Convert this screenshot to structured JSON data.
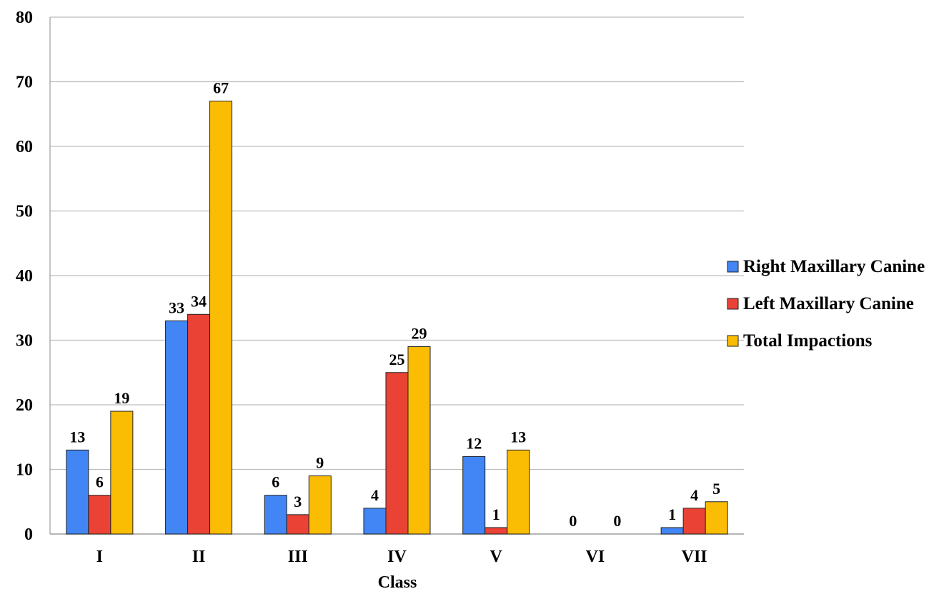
{
  "chart_data": {
    "type": "bar",
    "title": "",
    "xlabel": "Class",
    "ylabel": "",
    "ylim": [
      0,
      80
    ],
    "y_ticks": [
      0,
      10,
      20,
      30,
      40,
      50,
      60,
      70,
      80
    ],
    "grid": true,
    "legend_position": "right",
    "categories": [
      "I",
      "II",
      "III",
      "IV",
      "V",
      "VI",
      "VII"
    ],
    "series": [
      {
        "name": "Right Maxillary Canine",
        "color": "#4285f4",
        "values": [
          13,
          33,
          6,
          4,
          12,
          0,
          1
        ]
      },
      {
        "name": "Left Maxillary Canine",
        "color": "#ea4335",
        "values": [
          6,
          34,
          3,
          25,
          1,
          null,
          4
        ]
      },
      {
        "name": "Total Impactions",
        "color": "#fbbc04",
        "values": [
          19,
          67,
          9,
          29,
          13,
          0,
          5
        ]
      }
    ]
  }
}
